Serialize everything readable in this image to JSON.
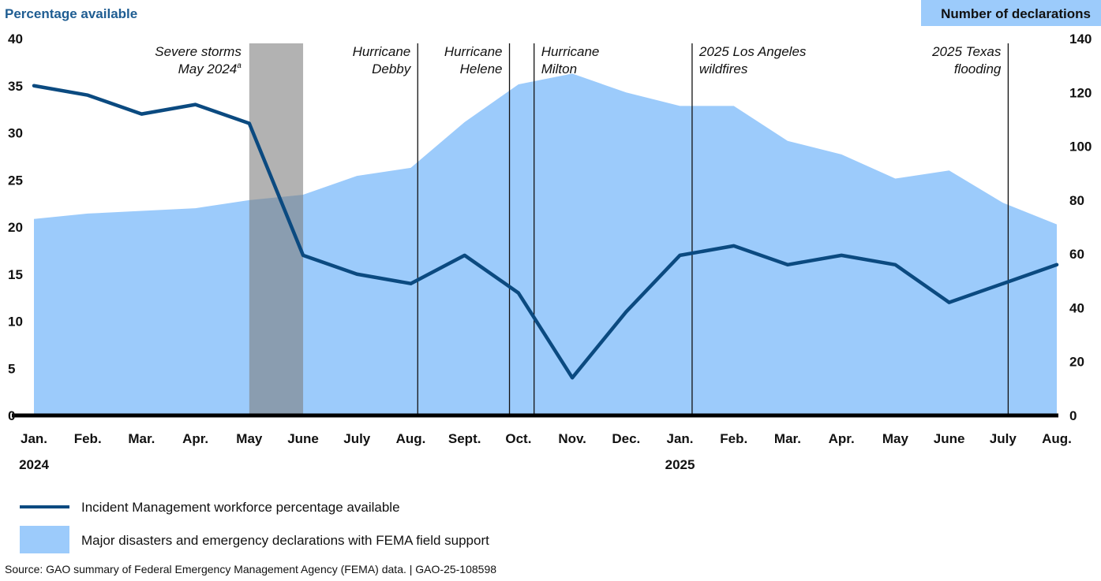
{
  "chart_data": {
    "type": "line+area",
    "left_axis": {
      "label": "Percentage available",
      "ticks": [
        "0",
        "5",
        "10",
        "15",
        "20",
        "25",
        "30",
        "35",
        "40"
      ],
      "range": [
        0,
        40
      ]
    },
    "right_axis": {
      "label": "Number of declarations",
      "ticks": [
        "0",
        "20",
        "40",
        "60",
        "80",
        "100",
        "120",
        "140"
      ],
      "range": [
        0,
        140
      ]
    },
    "categories": [
      "Jan.",
      "Feb.",
      "Mar.",
      "Apr.",
      "May",
      "June",
      "July",
      "Aug.",
      "Sept.",
      "Oct.",
      "Nov.",
      "Dec.",
      "Jan.",
      "Feb.",
      "Mar.",
      "Apr.",
      "May",
      "June",
      "July",
      "Aug."
    ],
    "years": [
      {
        "label": "2024",
        "month_index": 0
      },
      {
        "label": "2025",
        "month_index": 12
      }
    ],
    "series": [
      {
        "name": "Incident Management workforce percentage available",
        "type": "line",
        "axis": "left",
        "color": "#0b4a80",
        "values": [
          35,
          34,
          32,
          33,
          31,
          17,
          15,
          14,
          17,
          13,
          4,
          11,
          17,
          18,
          16,
          17,
          16,
          12,
          14,
          16
        ]
      },
      {
        "name": "Major disasters and emergency declarations with FEMA field support",
        "type": "area",
        "axis": "right",
        "color": "#9ccbfb",
        "values": [
          73,
          75,
          76,
          77,
          80,
          82,
          89,
          92,
          109,
          123,
          127,
          120,
          115,
          115,
          102,
          97,
          88,
          91,
          79,
          71
        ]
      }
    ],
    "events": [
      {
        "label_lines": [
          "Severe storms",
          "May 2024"
        ],
        "superscript": "a",
        "type": "band",
        "start": "2024-05-01",
        "end": "2024-06-01",
        "align": "right"
      },
      {
        "label_lines": [
          "Hurricane",
          "Debby"
        ],
        "type": "line",
        "date": "2024-08-05",
        "align": "right"
      },
      {
        "label_lines": [
          "Hurricane",
          "Helene"
        ],
        "type": "line",
        "date": "2024-09-26",
        "align": "right"
      },
      {
        "label_lines": [
          "Hurricane",
          "Milton"
        ],
        "type": "line",
        "date": "2024-10-10",
        "align": "left"
      },
      {
        "label_lines": [
          "2025 Los Angeles",
          "wildfires"
        ],
        "type": "line",
        "date": "2025-01-08",
        "align": "left"
      },
      {
        "label_lines": [
          "2025 Texas",
          "flooding"
        ],
        "type": "line",
        "date": "2025-07-04",
        "align": "right"
      }
    ],
    "start_month": "2024-01",
    "grid": false,
    "legend_placement": "bottom-left",
    "colors": {
      "band": "#7f7f7f",
      "left_label": "#1f5d92",
      "right_label_bg": "#9ccbfb",
      "baseline": "#000000"
    }
  },
  "source": "Source: GAO summary of Federal Emergency Management Agency (FEMA) data.  |  GAO-25-108598"
}
